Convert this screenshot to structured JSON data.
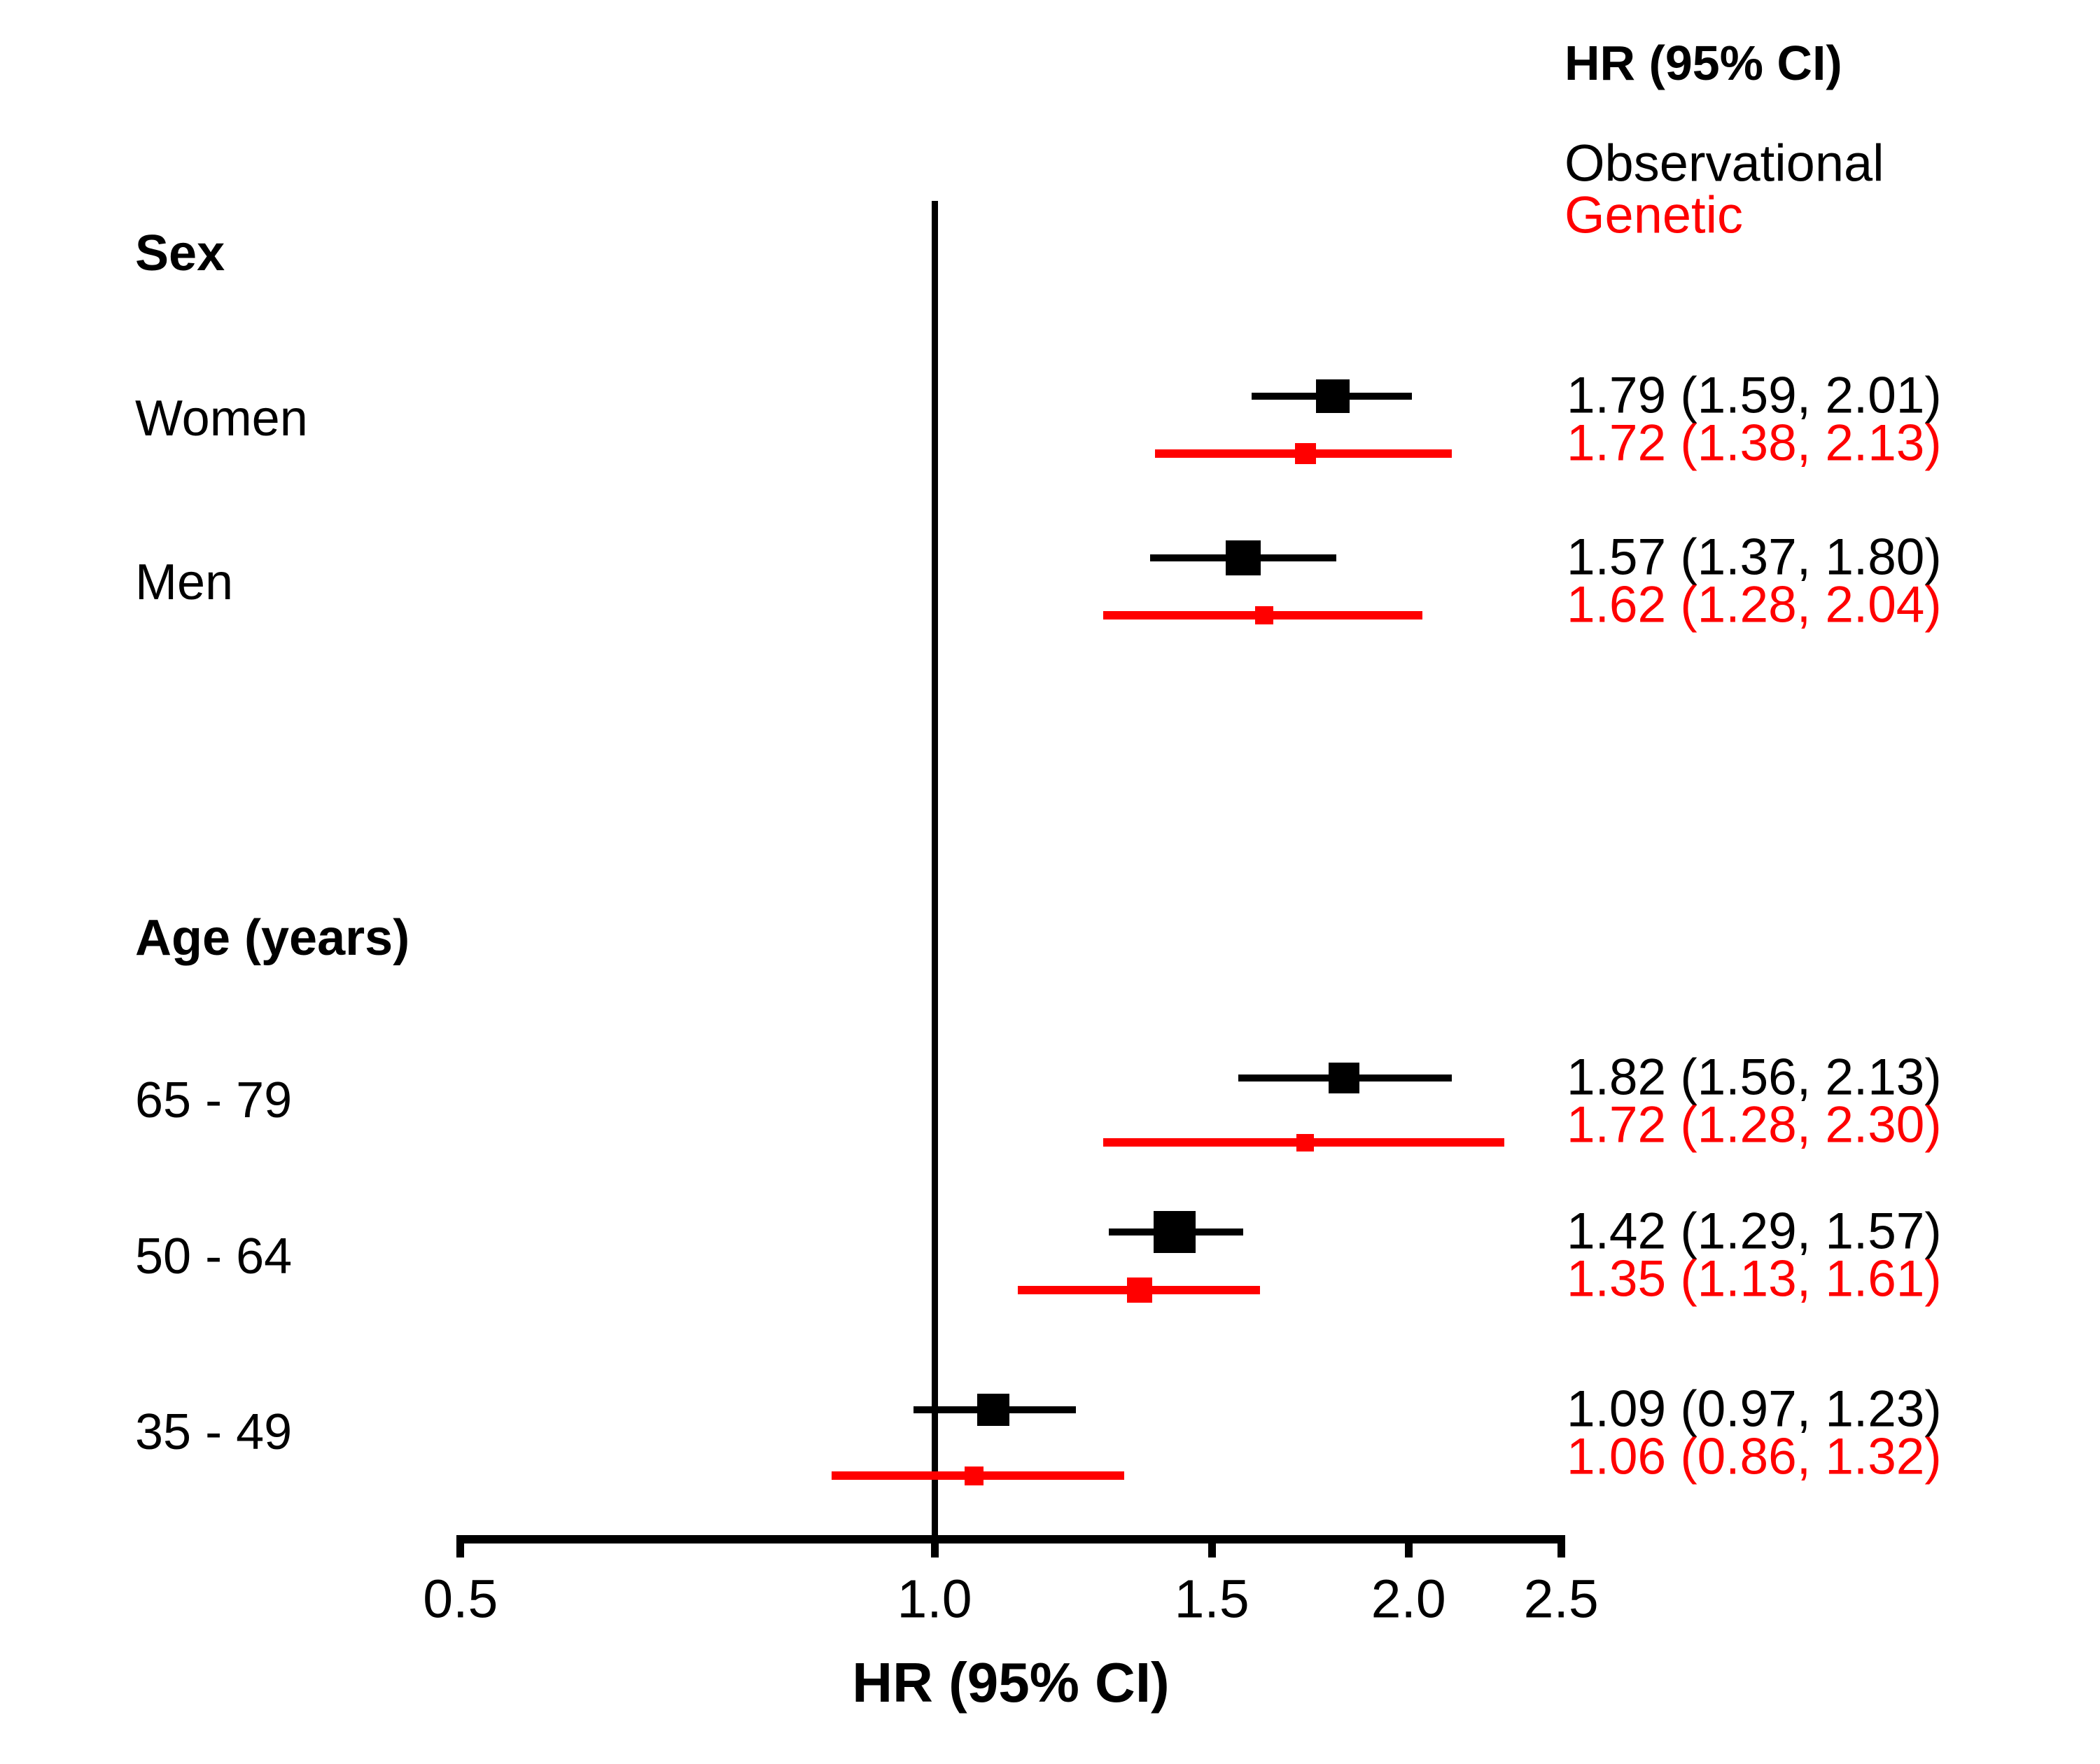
{
  "chart_data": {
    "type": "forest",
    "x_scale": "log",
    "x_range": [
      0.5,
      2.5
    ],
    "x_ticks": [
      0.5,
      1.0,
      1.5,
      2.0,
      2.5
    ],
    "x_tick_labels": [
      "0.5",
      "1.0",
      "1.5",
      "2.0",
      "2.5"
    ],
    "xlabel": "HR (95% CI)",
    "column_header": "HR (95% CI)",
    "reference_line": 1.0,
    "grid": false,
    "legend_position": "top-right",
    "legend": [
      {
        "label": "Observational",
        "color": "#000000"
      },
      {
        "label": "Genetic",
        "color": "#FF0000"
      }
    ],
    "groups": [
      {
        "label": "Sex",
        "rows": [
          {
            "label": "Women",
            "observational": {
              "hr": 1.79,
              "ci_lower": 1.59,
              "ci_upper": 2.01,
              "display": "1.79 (1.59, 2.01)"
            },
            "genetic": {
              "hr": 1.72,
              "ci_lower": 1.38,
              "ci_upper": 2.13,
              "display": "1.72 (1.38, 2.13)"
            }
          },
          {
            "label": "Men",
            "observational": {
              "hr": 1.57,
              "ci_lower": 1.37,
              "ci_upper": 1.8,
              "display": "1.57 (1.37, 1.80)"
            },
            "genetic": {
              "hr": 1.62,
              "ci_lower": 1.28,
              "ci_upper": 2.04,
              "display": "1.62 (1.28, 2.04)"
            }
          }
        ]
      },
      {
        "label": "Age (years)",
        "rows": [
          {
            "label": "65 - 79",
            "observational": {
              "hr": 1.82,
              "ci_lower": 1.56,
              "ci_upper": 2.13,
              "display": "1.82 (1.56, 2.13)"
            },
            "genetic": {
              "hr": 1.72,
              "ci_lower": 1.28,
              "ci_upper": 2.3,
              "display": "1.72 (1.28, 2.30)"
            }
          },
          {
            "label": "50 - 64",
            "observational": {
              "hr": 1.42,
              "ci_lower": 1.29,
              "ci_upper": 1.57,
              "display": "1.42 (1.29, 1.57)"
            },
            "genetic": {
              "hr": 1.35,
              "ci_lower": 1.13,
              "ci_upper": 1.61,
              "display": "1.35 (1.13, 1.61)"
            }
          },
          {
            "label": "35 - 49",
            "observational": {
              "hr": 1.09,
              "ci_lower": 0.97,
              "ci_upper": 1.23,
              "display": "1.09 (0.97, 1.23)"
            },
            "genetic": {
              "hr": 1.06,
              "ci_lower": 0.86,
              "ci_upper": 1.32,
              "display": "1.06 (0.86, 1.32)"
            }
          }
        ]
      }
    ],
    "colors": {
      "observational": "#000000",
      "genetic": "#FF0000",
      "background": "#FFFFFF"
    }
  }
}
